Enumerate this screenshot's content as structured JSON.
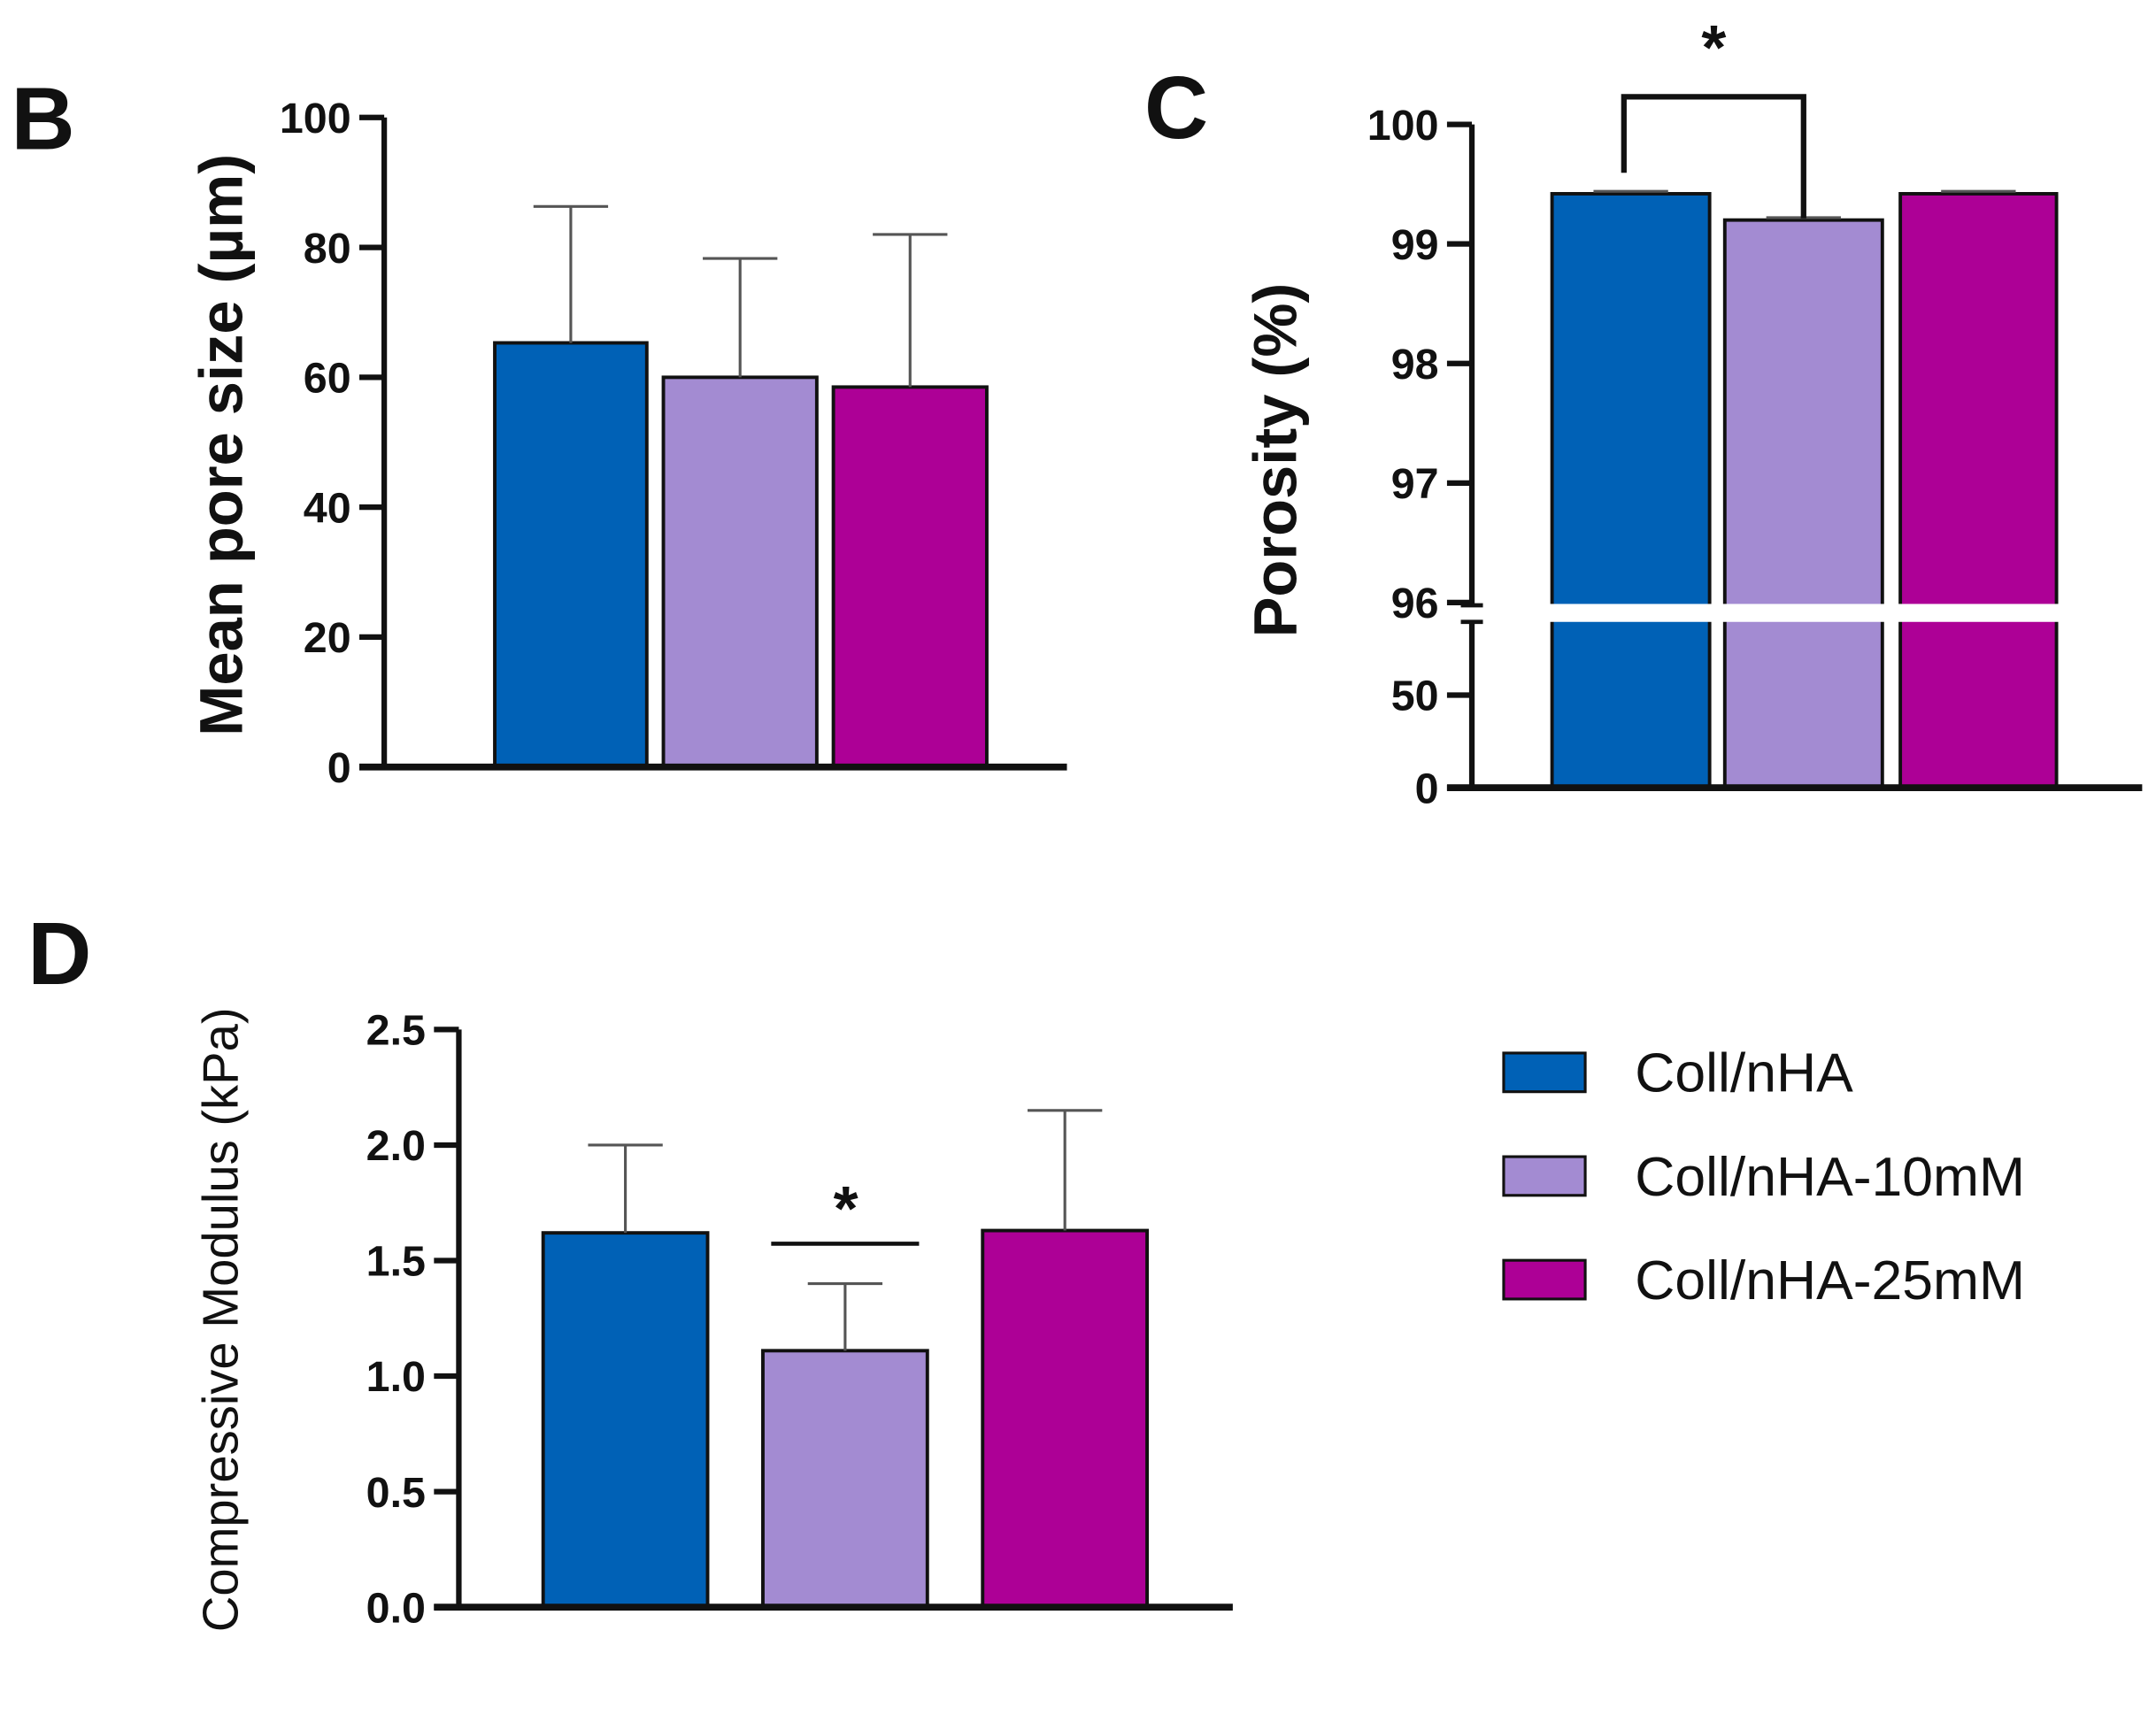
{
  "legend": {
    "items": [
      {
        "label": "Coll/nHA",
        "color": "#0061b6"
      },
      {
        "label": "Coll/nHA-10mM",
        "color": "#a38bd2"
      },
      {
        "label": "Coll/nHA-25mM",
        "color": "#ad0096"
      }
    ]
  },
  "chart_data": [
    {
      "panel": "B",
      "type": "bar",
      "ylabel": "Mean pore size (µm)",
      "categories": [
        "Coll/nHA",
        "Coll/nHA-10mM",
        "Coll/nHA-25mM"
      ],
      "values": [
        65.3,
        60.0,
        58.5
      ],
      "error_upper": [
        86.3,
        78.3,
        82.0
      ],
      "ylim": [
        0,
        100
      ],
      "yticks": [
        "0",
        "20",
        "40",
        "60",
        "80",
        "100"
      ],
      "annotations": []
    },
    {
      "panel": "C",
      "type": "bar",
      "ylabel": "Porosity (%)",
      "categories": [
        "Coll/nHA",
        "Coll/nHA-10mM",
        "Coll/nHA-25mM"
      ],
      "values": [
        99.42,
        99.2,
        99.42
      ],
      "error_upper": [
        99.44,
        99.22,
        99.44
      ],
      "axis_break": {
        "lower_range": [
          0,
          50
        ],
        "upper_range": [
          96,
          100
        ]
      },
      "yticks": [
        "0",
        "50",
        "96",
        "97",
        "98",
        "99",
        "100"
      ],
      "annotations": [
        {
          "text": "*",
          "between": [
            "Coll/nHA",
            "Coll/nHA-10mM"
          ]
        }
      ]
    },
    {
      "panel": "D",
      "type": "bar",
      "ylabel": "Compressive Modulus (kPa)",
      "categories": [
        "Coll/nHA",
        "Coll/nHA-10mM",
        "Coll/nHA-25mM"
      ],
      "values": [
        1.62,
        1.11,
        1.63
      ],
      "error_upper": [
        2.0,
        1.4,
        2.15
      ],
      "ylim": [
        0,
        2.5
      ],
      "yticks": [
        "0.0",
        "0.5",
        "1.0",
        "1.5",
        "2.0",
        "2.5"
      ],
      "annotations": [
        {
          "text": "*",
          "over": "Coll/nHA-10mM"
        }
      ]
    }
  ]
}
